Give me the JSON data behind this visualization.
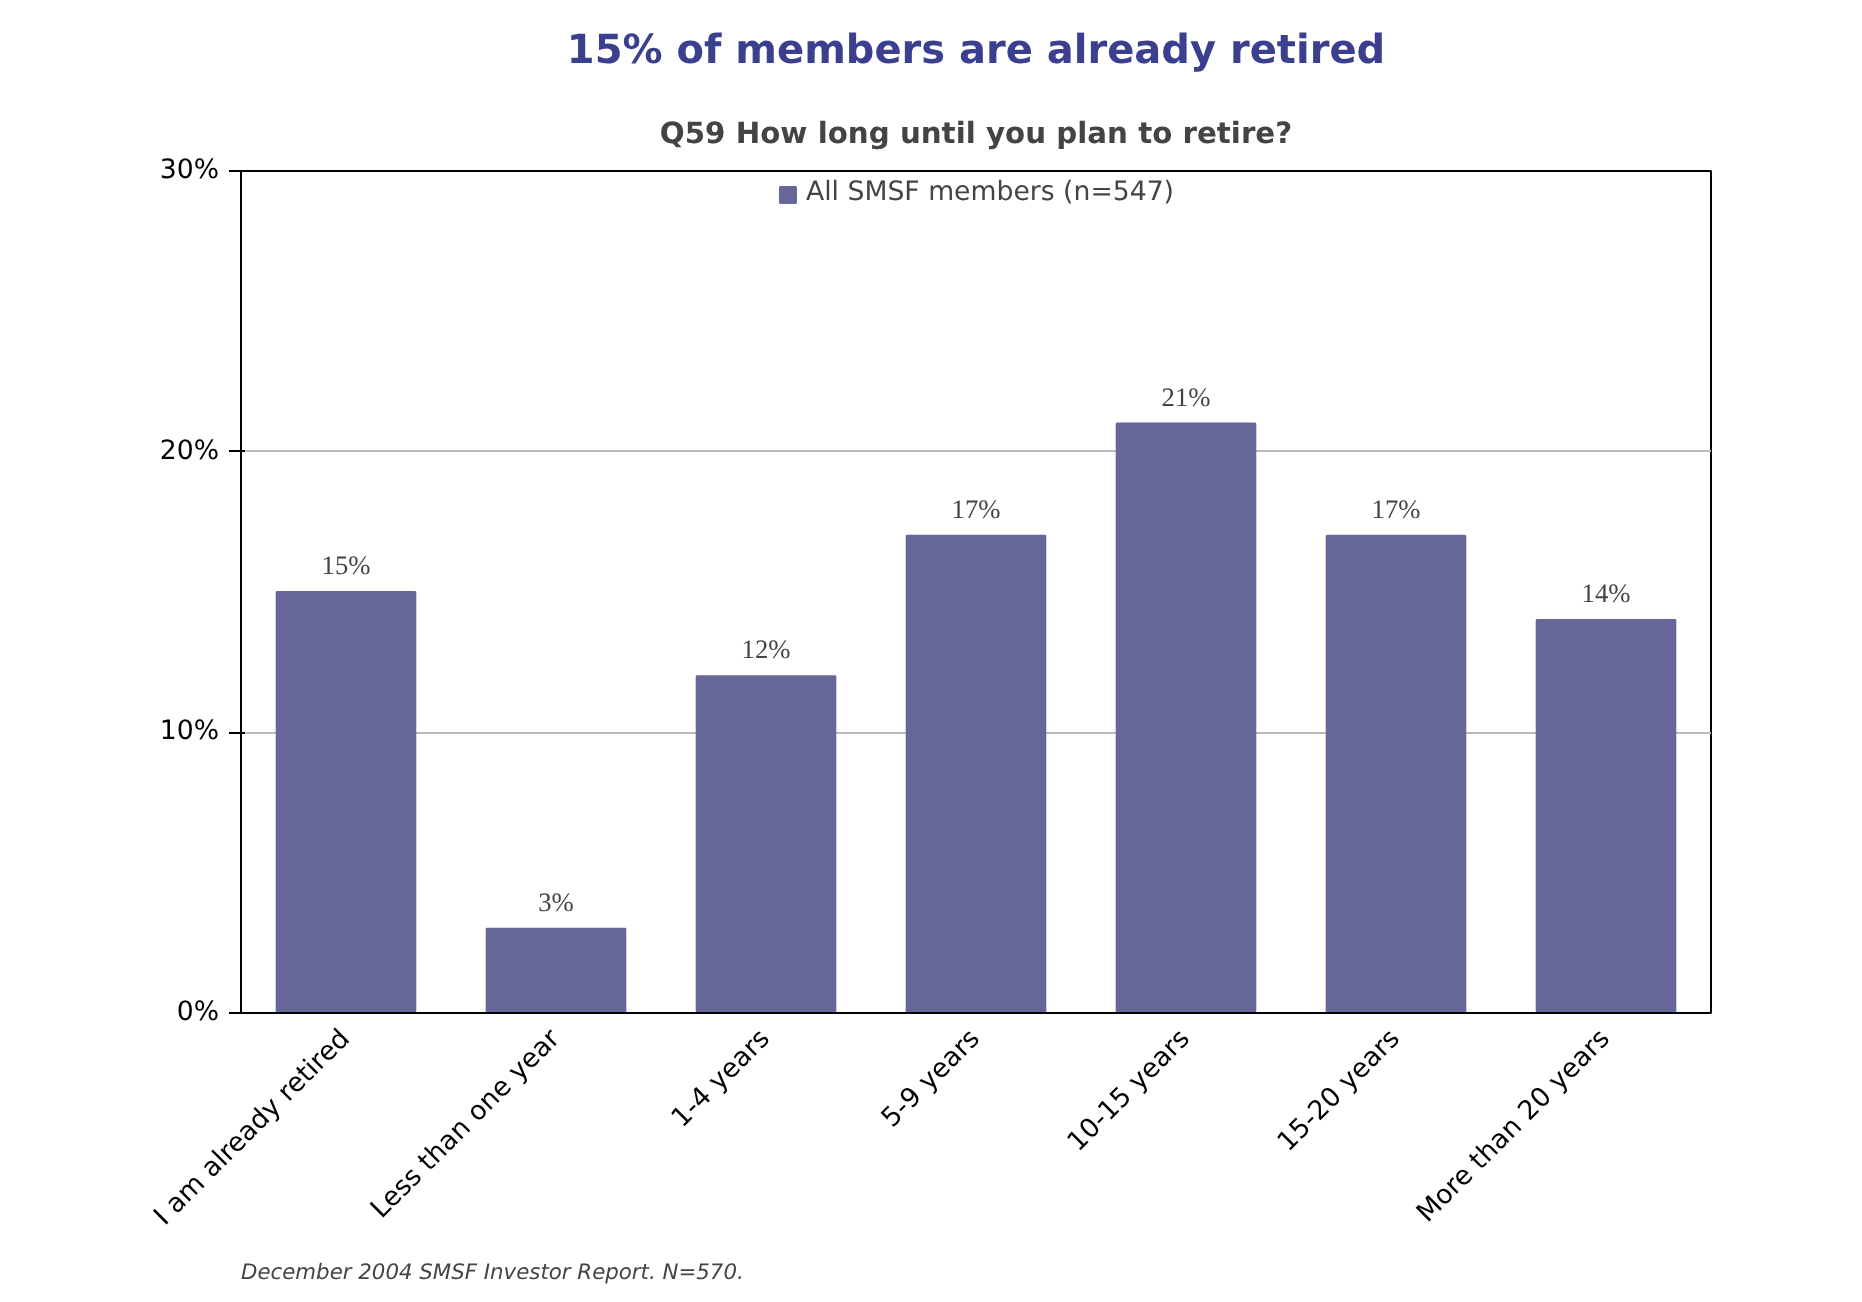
{
  "chart_data": {
    "type": "bar",
    "title": "15% of members are already retired",
    "subtitle": "Q59 How long until you plan to retire?",
    "categories": [
      "I am already retired",
      "Less than one year",
      "1-4 years",
      "5-9 years",
      "10-15 years",
      "15-20 years",
      "More than 20 years"
    ],
    "series": [
      {
        "name": "All SMSF members (n=547)",
        "color": "#666699",
        "values": [
          15,
          3,
          12,
          17,
          21,
          17,
          14
        ],
        "value_labels": [
          "15%",
          "3%",
          "12%",
          "17%",
          "21%",
          "17%",
          "14%"
        ]
      }
    ],
    "ylim": [
      0,
      30
    ],
    "yticks": [
      {
        "value": 0,
        "label": "0%"
      },
      {
        "value": 10,
        "label": "10%"
      },
      {
        "value": 20,
        "label": "20%"
      },
      {
        "value": 30,
        "label": "30%"
      }
    ],
    "grid": "y",
    "legend": "top",
    "annotations": [
      "December 2004 SMSF Investor Report. N=570."
    ]
  }
}
